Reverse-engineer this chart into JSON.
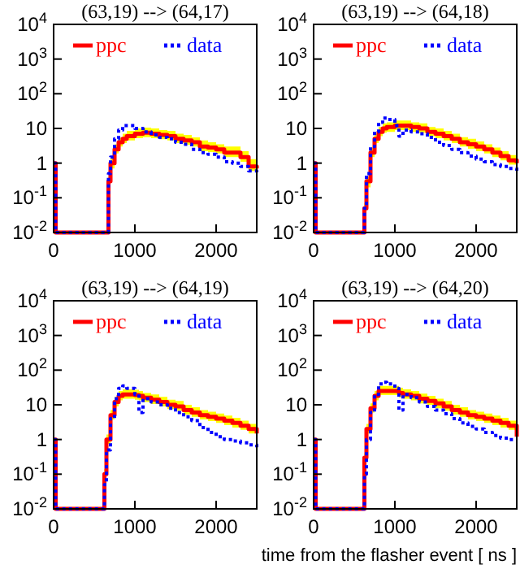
{
  "chart_data": [
    {
      "type": "step",
      "title": "(63,19) --> (64,17)",
      "log": true,
      "legend": "top",
      "xlim": [
        0,
        2500
      ],
      "xticks": [
        0,
        1000,
        2000
      ],
      "ylim": [
        0.01,
        10000
      ],
      "yticks": [
        {
          "value": 0.01,
          "label": "10$^{-2}$"
        },
        {
          "value": 0.1,
          "label": "10$^{-1}$"
        },
        {
          "value": 1,
          "label": "1"
        },
        {
          "value": 10,
          "label": "10"
        },
        {
          "value": 100,
          "label": "10$^{2}$"
        },
        {
          "value": 1000,
          "label": "10$^{3}$"
        },
        {
          "value": 10000,
          "label": "10$^{4}$"
        }
      ],
      "x": [
        0,
        25,
        650,
        675,
        700,
        750,
        800,
        850,
        900,
        1000,
        1100,
        1200,
        1300,
        1400,
        1500,
        1600,
        1700,
        1800,
        1900,
        2000,
        2100,
        2200,
        2300,
        2400,
        2500
      ],
      "series": [
        {
          "name": "ppc",
          "color": "#ff0000",
          "line_style": "solid",
          "values": [
            1,
            0.01,
            0.01,
            0.3,
            1,
            2.5,
            4,
            5,
            6,
            7,
            7.5,
            7,
            6.5,
            6,
            5,
            4.5,
            4,
            3,
            2.8,
            2.5,
            2,
            2,
            1.5,
            0.8,
            0.7
          ],
          "upper": [
            1,
            0.01,
            0.01,
            0.4,
            1.4,
            3.5,
            5.5,
            7,
            8.5,
            10,
            10.5,
            10,
            9,
            8.5,
            7,
            6.5,
            5.5,
            4.5,
            4,
            3.5,
            3,
            3,
            2.2,
            1.3,
            1.1
          ],
          "lower": [
            1,
            0.01,
            0.01,
            0.2,
            0.7,
            1.9,
            3,
            3.8,
            4.5,
            5.2,
            5.6,
            5.2,
            4.9,
            4.5,
            3.8,
            3.4,
            3,
            2.2,
            2.1,
            1.9,
            1.5,
            1.5,
            1.1,
            0.6,
            0.5
          ]
        },
        {
          "name": "data",
          "color": "#0000ff",
          "line_style": "dotted",
          "values": [
            1,
            0.01,
            0.01,
            0.5,
            1.5,
            5,
            9,
            12,
            12,
            10,
            8,
            6.5,
            5.5,
            5,
            4,
            3.5,
            2.5,
            2,
            1.8,
            1.5,
            1.1,
            1,
            0.8,
            0.6,
            0.5
          ]
        }
      ]
    },
    {
      "type": "step",
      "title": "(63,19) --> (64,18)",
      "log": true,
      "legend": "top",
      "xlim": [
        0,
        2500
      ],
      "xticks": [
        0,
        1000,
        2000
      ],
      "ylim": [
        0.01,
        10000
      ],
      "yticks": [
        {
          "value": 0.01,
          "label": "10$^{-2}$"
        },
        {
          "value": 0.1,
          "label": "10$^{-1}$"
        },
        {
          "value": 1,
          "label": "1"
        },
        {
          "value": 10,
          "label": "10"
        },
        {
          "value": 100,
          "label": "10$^{2}$"
        },
        {
          "value": 1000,
          "label": "10$^{3}$"
        },
        {
          "value": 10000,
          "label": "10$^{4}$"
        }
      ],
      "x": [
        0,
        25,
        600,
        625,
        650,
        700,
        750,
        800,
        850,
        900,
        1000,
        1050,
        1100,
        1200,
        1300,
        1400,
        1500,
        1600,
        1700,
        1800,
        1900,
        2000,
        2100,
        2200,
        2300,
        2400,
        2500
      ],
      "series": [
        {
          "name": "ppc",
          "color": "#ff0000",
          "line_style": "solid",
          "values": [
            1,
            0.01,
            0.01,
            0.05,
            0.3,
            2,
            5,
            8,
            10,
            11,
            12,
            12,
            12,
            11,
            10,
            8,
            7,
            6,
            5,
            4,
            3.5,
            3,
            2.5,
            2,
            1.6,
            1.2,
            1
          ],
          "upper": [
            1,
            0.01,
            0.01,
            0.07,
            0.4,
            2.8,
            7,
            11,
            14,
            15,
            17,
            17,
            17,
            15,
            14,
            11,
            10,
            8.5,
            7,
            5.6,
            5,
            4.2,
            3.5,
            2.8,
            2.2,
            1.7,
            1.4
          ],
          "lower": [
            1,
            0.01,
            0.01,
            0.04,
            0.2,
            1.5,
            3.8,
            6,
            7.5,
            8,
            9,
            9,
            9,
            8,
            7.5,
            6,
            5.2,
            4.5,
            3.8,
            3,
            2.6,
            2.2,
            1.9,
            1.5,
            1.2,
            0.9,
            0.75
          ]
        },
        {
          "name": "data",
          "color": "#0000ff",
          "line_style": "dotted",
          "values": [
            1,
            0.01,
            0.01,
            0.05,
            0.5,
            3,
            8,
            15,
            20,
            18,
            12,
            6,
            9,
            8,
            7,
            5.5,
            4,
            3.2,
            2.5,
            2,
            1.6,
            1.3,
            1.1,
            0.9,
            0.8,
            0.7,
            0.6
          ]
        }
      ]
    },
    {
      "type": "step",
      "title": "(63,19) --> (64,19)",
      "log": true,
      "legend": "top",
      "xlim": [
        0,
        2500
      ],
      "xticks": [
        0,
        1000,
        2000
      ],
      "ylim": [
        0.01,
        10000
      ],
      "yticks": [
        {
          "value": 0.01,
          "label": "10$^{-2}$"
        },
        {
          "value": 0.1,
          "label": "10$^{-1}$"
        },
        {
          "value": 1,
          "label": "1"
        },
        {
          "value": 10,
          "label": "10"
        },
        {
          "value": 100,
          "label": "10$^{2}$"
        },
        {
          "value": 1000,
          "label": "10$^{3}$"
        },
        {
          "value": 10000,
          "label": "10$^{4}$"
        }
      ],
      "x": [
        0,
        25,
        600,
        625,
        650,
        700,
        750,
        800,
        850,
        900,
        1000,
        1050,
        1100,
        1200,
        1300,
        1400,
        1500,
        1600,
        1700,
        1800,
        1900,
        2000,
        2100,
        2200,
        2300,
        2400,
        2500
      ],
      "series": [
        {
          "name": "ppc",
          "color": "#ff0000",
          "line_style": "solid",
          "values": [
            1,
            0.01,
            0.01,
            0.1,
            1,
            5,
            12,
            18,
            20,
            20,
            19,
            18,
            16,
            14,
            12,
            10,
            9,
            7,
            6,
            5,
            4.5,
            4,
            3.5,
            3,
            2.5,
            2,
            1.5
          ],
          "upper": [
            1,
            0.01,
            0.01,
            0.14,
            1.4,
            7,
            17,
            25,
            28,
            28,
            27,
            25,
            22,
            20,
            17,
            14,
            13,
            10,
            8.5,
            7,
            6.3,
            5.6,
            4.9,
            4.2,
            3.5,
            2.8,
            2.1
          ],
          "lower": [
            1,
            0.01,
            0.01,
            0.08,
            0.75,
            3.8,
            9,
            13.5,
            15,
            15,
            14,
            13.5,
            12,
            10.5,
            9,
            7.5,
            6.8,
            5.2,
            4.5,
            3.8,
            3.4,
            3,
            2.6,
            2.2,
            1.9,
            1.5,
            1.1
          ]
        },
        {
          "name": "data",
          "color": "#0000ff",
          "line_style": "dotted",
          "values": [
            1,
            0.01,
            0.01,
            0.05,
            0.5,
            4,
            15,
            30,
            35,
            30,
            20,
            6,
            15,
            12,
            10,
            8,
            6,
            4.5,
            3.5,
            2.2,
            1.6,
            1.2,
            1,
            0.9,
            0.8,
            0.7,
            0.6
          ]
        }
      ]
    },
    {
      "type": "step",
      "title": "(63,19) --> (64,20)",
      "xlabel": "time from the flasher event [ ns ]",
      "log": true,
      "legend": "top",
      "xlim": [
        0,
        2500
      ],
      "xticks": [
        0,
        1000,
        2000
      ],
      "ylim": [
        0.01,
        10000
      ],
      "yticks": [
        {
          "value": 0.01,
          "label": "10$^{-2}$"
        },
        {
          "value": 0.1,
          "label": "10$^{-1}$"
        },
        {
          "value": 1,
          "label": "1"
        },
        {
          "value": 10,
          "label": "10"
        },
        {
          "value": 100,
          "label": "10$^{2}$"
        },
        {
          "value": 1000,
          "label": "10$^{3}$"
        },
        {
          "value": 10000,
          "label": "10$^{4}$"
        }
      ],
      "x": [
        0,
        25,
        600,
        625,
        650,
        700,
        750,
        800,
        850,
        900,
        1000,
        1050,
        1100,
        1200,
        1300,
        1400,
        1500,
        1600,
        1700,
        1800,
        1900,
        2000,
        2100,
        2200,
        2300,
        2400,
        2500
      ],
      "series": [
        {
          "name": "ppc",
          "color": "#ff0000",
          "line_style": "solid",
          "values": [
            1,
            0.01,
            0.01,
            0.3,
            2,
            8,
            18,
            25,
            25,
            25,
            25,
            22,
            20,
            18,
            15,
            13,
            11,
            9,
            7,
            6,
            5,
            4.5,
            4,
            3.5,
            3,
            2.5,
            1.2
          ],
          "upper": [
            1,
            0.01,
            0.01,
            0.4,
            2.8,
            11,
            25,
            35,
            35,
            35,
            35,
            31,
            28,
            25,
            21,
            18,
            15,
            13,
            10,
            8.5,
            7,
            6.3,
            5.6,
            4.9,
            4.2,
            3.5,
            2
          ],
          "lower": [
            1,
            0.01,
            0.01,
            0.2,
            1.5,
            6,
            13.5,
            19,
            19,
            19,
            19,
            16.5,
            15,
            13.5,
            11,
            10,
            8,
            6.8,
            5.2,
            4.5,
            3.8,
            3.4,
            3,
            2.6,
            2.2,
            1.9,
            0.9
          ]
        },
        {
          "name": "data",
          "color": "#0000ff",
          "line_style": "dotted",
          "values": [
            1,
            0.01,
            0.01,
            0.1,
            1,
            6,
            20,
            40,
            45,
            40,
            30,
            7,
            20,
            16,
            12,
            9,
            7,
            5.5,
            4,
            3,
            2.4,
            2,
            1.6,
            1.3,
            1.1,
            1,
            1
          ]
        }
      ]
    }
  ]
}
